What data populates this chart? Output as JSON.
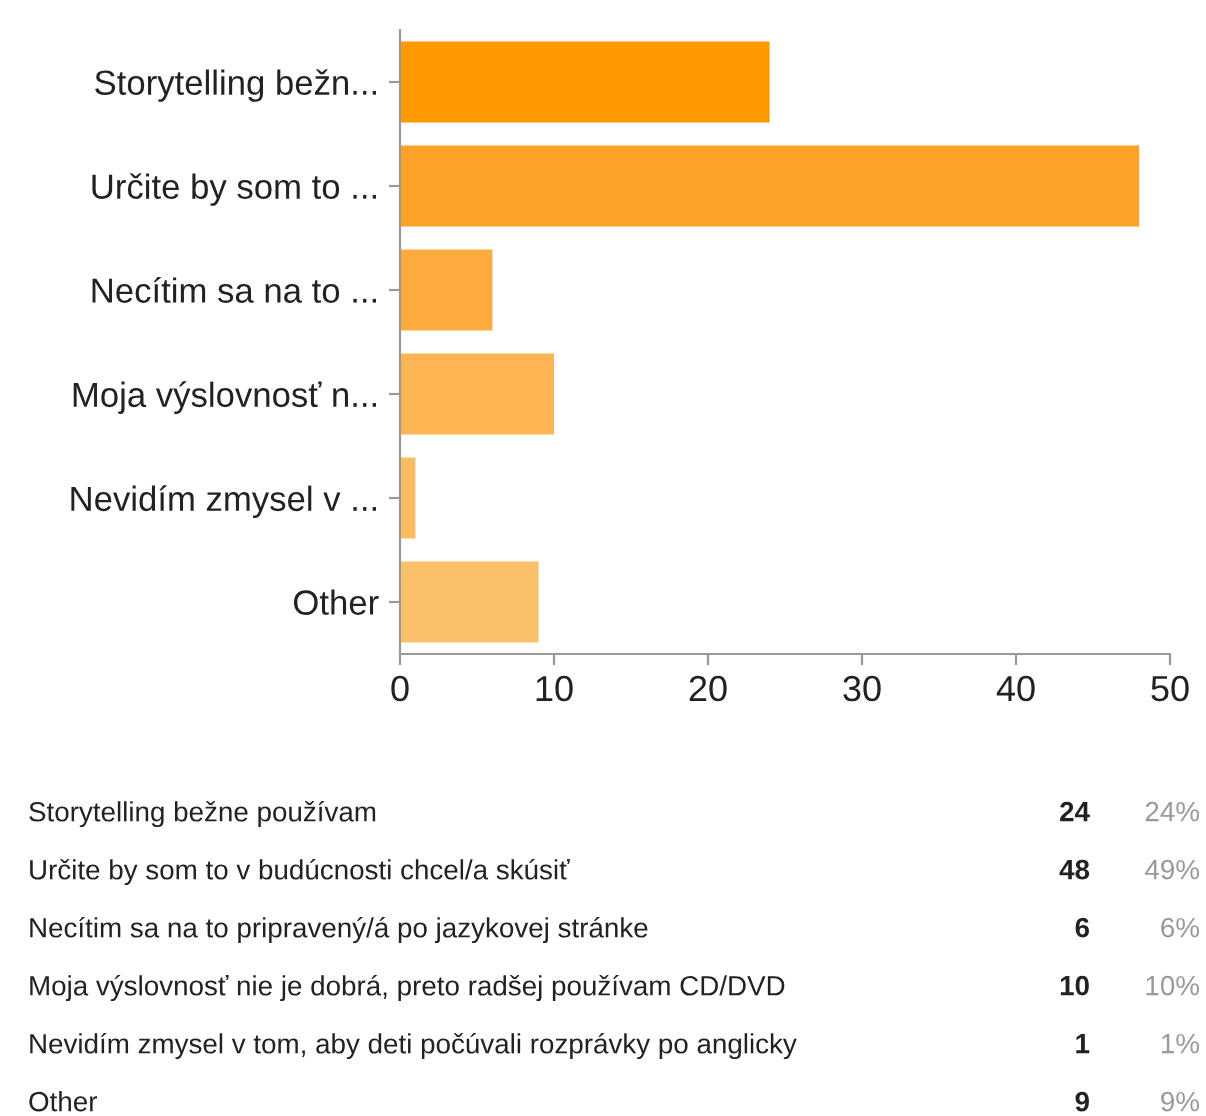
{
  "chart_data": {
    "type": "bar",
    "orientation": "horizontal",
    "categories": [
      "Storytelling bežn...",
      "Určite by som to ...",
      "Necítim sa na to ...",
      "Moja výslovnosť n...",
      "Nevidím zmysel v ...",
      "Other"
    ],
    "values": [
      24,
      48,
      6,
      10,
      1,
      9
    ],
    "colors": [
      "#ff9900",
      "#fda226",
      "#fcab3c",
      "#fcb552",
      "#fcbd62",
      "#fcc06a"
    ],
    "xlim": [
      0,
      50
    ],
    "xticks": [
      0,
      10,
      20,
      30,
      40,
      50
    ],
    "grid": false,
    "annotations": [
      "Storytelling bežne používam",
      "24",
      "24%",
      "Určite by som to v budúcnosti chcel/a skúsiť",
      "48",
      "49%",
      "Necítim sa na to pripravený/á po jazykovej stránke",
      "6",
      "6%",
      "Moja výslovnosť nie je dobrá, preto radšej používam CD/DVD",
      "10",
      "10%",
      "Nevidím zmysel v tom, aby deti počúvali rozprávky po anglicky",
      "1",
      "1%",
      "Other",
      "9",
      "9%"
    ]
  }
}
